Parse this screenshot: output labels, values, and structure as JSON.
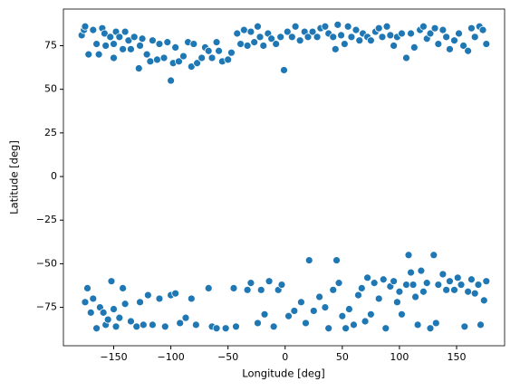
{
  "chart_data": {
    "type": "scatter",
    "xlabel": "Longitude [deg]",
    "ylabel": "Latitude [deg]",
    "color": "#1f77b4",
    "edgecolor": "#ffffff",
    "xlim": [
      -194,
      192
    ],
    "ylim": [
      -97,
      96
    ],
    "xticks": [
      {
        "value": -150,
        "label": "−150"
      },
      {
        "value": -100,
        "label": "−100"
      },
      {
        "value": -50,
        "label": "−50"
      },
      0,
      50,
      100,
      150
    ],
    "yticks": [
      {
        "value": -75,
        "label": "−75"
      },
      {
        "value": -50,
        "label": "−50"
      },
      {
        "value": -25,
        "label": "−25"
      },
      0,
      25,
      50,
      75
    ],
    "x": [
      -178,
      -176,
      -175,
      -172,
      -168,
      -165,
      -163,
      -160,
      -158,
      -157,
      -153,
      -150,
      -150,
      -148,
      -145,
      -142,
      -140,
      -137,
      -135,
      -132,
      -128,
      -127,
      -125,
      -121,
      -118,
      -116,
      -112,
      -110,
      -106,
      -103,
      -100,
      -98,
      -96,
      -93,
      -89,
      -85,
      -82,
      -80,
      -77,
      -73,
      -70,
      -67,
      -64,
      -60,
      -58,
      -55,
      -50,
      -47,
      -42,
      -39,
      -36,
      -33,
      -30,
      -27,
      -24,
      -22,
      -19,
      -15,
      -12,
      -8,
      -4,
      -1,
      2,
      6,
      9,
      13,
      17,
      20,
      24,
      28,
      31,
      35,
      38,
      42,
      44,
      46,
      49,
      52,
      55,
      58,
      62,
      65,
      68,
      72,
      75,
      79,
      82,
      85,
      89,
      92,
      95,
      98,
      102,
      106,
      110,
      113,
      118,
      121,
      124,
      127,
      131,
      134,
      138,
      141,
      144,
      148,
      152,
      156,
      160,
      163,
      166,
      170,
      173,
      176,
      -175,
      -173,
      -170,
      -168,
      -165,
      -162,
      -159,
      -157,
      -155,
      -152,
      -150,
      -148,
      -145,
      -142,
      -140,
      -135,
      -130,
      -127,
      -124,
      -120,
      -116,
      -110,
      -105,
      -100,
      -96,
      -92,
      -87,
      -82,
      -78,
      -67,
      -64,
      -60,
      -52,
      -45,
      -43,
      -33,
      -30,
      -24,
      -21,
      -18,
      -14,
      -10,
      -6,
      -3,
      3,
      8,
      14,
      18,
      21,
      25,
      30,
      35,
      38,
      42,
      45,
      47,
      50,
      53,
      56,
      60,
      64,
      67,
      70,
      72,
      75,
      78,
      82,
      86,
      88,
      92,
      95,
      98,
      100,
      102,
      106,
      108,
      110,
      112,
      114,
      116,
      119,
      121,
      124,
      127,
      130,
      132,
      134,
      138,
      141,
      144,
      148,
      151,
      154,
      157,
      160,
      163,
      166,
      169,
      171,
      174,
      176
    ],
    "y": [
      81,
      84,
      86,
      70,
      84,
      76,
      70,
      85,
      82,
      75,
      80,
      68,
      76,
      83,
      80,
      73,
      83,
      78,
      73,
      80,
      62,
      75,
      79,
      70,
      66,
      78,
      67,
      76,
      68,
      77,
      55,
      65,
      74,
      66,
      69,
      77,
      63,
      76,
      65,
      68,
      74,
      72,
      68,
      77,
      72,
      66,
      67,
      71,
      82,
      76,
      84,
      75,
      83,
      77,
      86,
      80,
      75,
      82,
      79,
      76,
      80,
      61,
      83,
      80,
      86,
      78,
      83,
      80,
      83,
      80,
      85,
      86,
      82,
      80,
      73,
      87,
      81,
      76,
      86,
      80,
      84,
      78,
      82,
      80,
      78,
      83,
      85,
      80,
      86,
      81,
      75,
      80,
      82,
      68,
      82,
      74,
      84,
      86,
      79,
      82,
      85,
      76,
      84,
      80,
      73,
      78,
      82,
      75,
      72,
      85,
      80,
      86,
      84,
      76,
      -72,
      -64,
      -78,
      -70,
      -87,
      -75,
      -78,
      -85,
      -82,
      -60,
      -76,
      -86,
      -81,
      -64,
      -73,
      -83,
      -86,
      -72,
      -85,
      -68,
      -85,
      -70,
      -86,
      -68,
      -67,
      -84,
      -81,
      -70,
      -85,
      -64,
      -86,
      -87,
      -87,
      -64,
      -86,
      -65,
      -61,
      -84,
      -65,
      -79,
      -60,
      -86,
      -65,
      -62,
      -80,
      -77,
      -72,
      -84,
      -48,
      -77,
      -69,
      -75,
      -87,
      -65,
      -48,
      -61,
      -80,
      -87,
      -76,
      -85,
      -68,
      -64,
      -83,
      -58,
      -79,
      -61,
      -70,
      -59,
      -87,
      -63,
      -60,
      -72,
      -66,
      -79,
      -62,
      -45,
      -55,
      -62,
      -69,
      -85,
      -54,
      -66,
      -61,
      -87,
      -45,
      -84,
      -62,
      -56,
      -65,
      -60,
      -65,
      -58,
      -62,
      -86,
      -66,
      -59,
      -67,
      -62,
      -85,
      -71,
      -60
    ]
  }
}
